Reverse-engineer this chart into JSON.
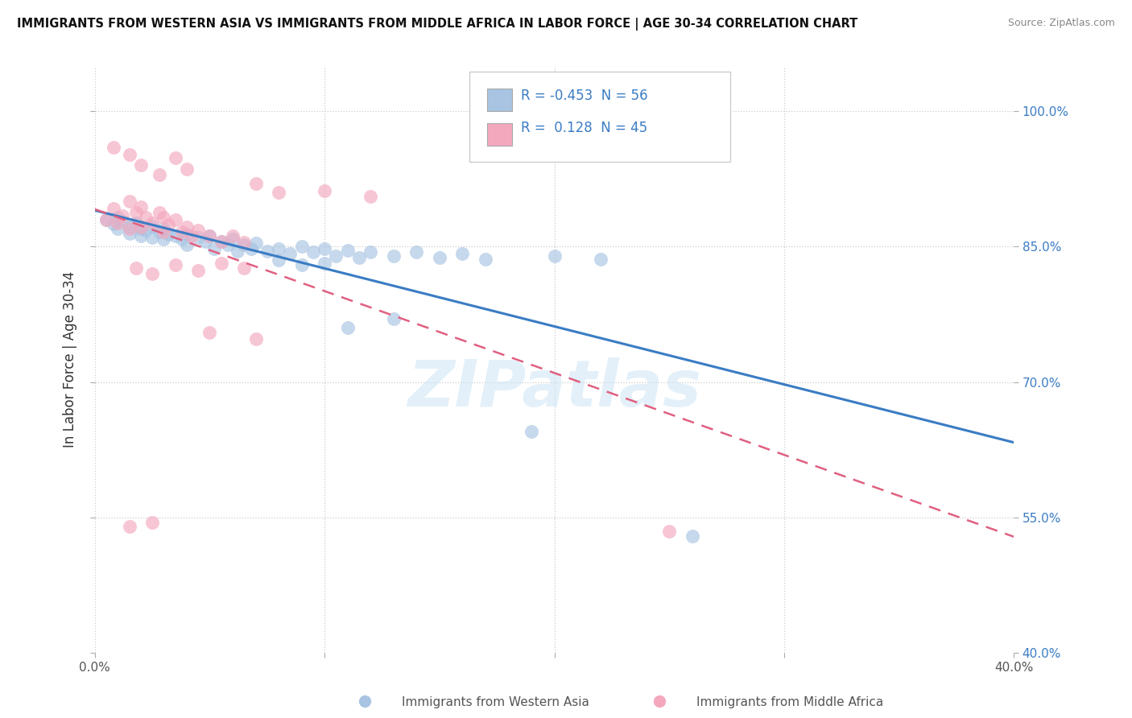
{
  "title": "IMMIGRANTS FROM WESTERN ASIA VS IMMIGRANTS FROM MIDDLE AFRICA IN LABOR FORCE | AGE 30-34 CORRELATION CHART",
  "source": "Source: ZipAtlas.com",
  "ylabel": "In Labor Force | Age 30-34",
  "xlim": [
    0.0,
    0.4
  ],
  "ylim": [
    0.4,
    1.05
  ],
  "yticks": [
    0.4,
    0.55,
    0.7,
    0.85,
    1.0
  ],
  "yticklabels": [
    "40.0%",
    "55.0%",
    "70.0%",
    "85.0%",
    "100.0%"
  ],
  "xticks": [
    0.0,
    0.1,
    0.2,
    0.3,
    0.4
  ],
  "xticklabels": [
    "0.0%",
    "",
    "",
    "",
    "40.0%"
  ],
  "legend_R_blue": "-0.453",
  "legend_N_blue": "56",
  "legend_R_pink": "0.128",
  "legend_N_pink": "45",
  "blue_color": "#a8c4e2",
  "pink_color": "#f4a8be",
  "blue_line_color": "#3a7cc4",
  "pink_line_color": "#e06080",
  "watermark": "ZIPatlas",
  "blue_scatter": [
    [
      0.005,
      0.88
    ],
    [
      0.008,
      0.875
    ],
    [
      0.01,
      0.882
    ],
    [
      0.01,
      0.87
    ],
    [
      0.012,
      0.878
    ],
    [
      0.015,
      0.872
    ],
    [
      0.015,
      0.865
    ],
    [
      0.018,
      0.876
    ],
    [
      0.02,
      0.87
    ],
    [
      0.02,
      0.862
    ],
    [
      0.022,
      0.868
    ],
    [
      0.025,
      0.873
    ],
    [
      0.025,
      0.86
    ],
    [
      0.028,
      0.866
    ],
    [
      0.03,
      0.87
    ],
    [
      0.03,
      0.858
    ],
    [
      0.032,
      0.864
    ],
    [
      0.035,
      0.862
    ],
    [
      0.038,
      0.858
    ],
    [
      0.04,
      0.864
    ],
    [
      0.04,
      0.852
    ],
    [
      0.045,
      0.86
    ],
    [
      0.048,
      0.856
    ],
    [
      0.05,
      0.862
    ],
    [
      0.052,
      0.848
    ],
    [
      0.055,
      0.856
    ],
    [
      0.058,
      0.852
    ],
    [
      0.06,
      0.858
    ],
    [
      0.062,
      0.845
    ],
    [
      0.065,
      0.852
    ],
    [
      0.068,
      0.848
    ],
    [
      0.07,
      0.854
    ],
    [
      0.075,
      0.845
    ],
    [
      0.08,
      0.848
    ],
    [
      0.085,
      0.842
    ],
    [
      0.09,
      0.85
    ],
    [
      0.095,
      0.844
    ],
    [
      0.1,
      0.848
    ],
    [
      0.105,
      0.84
    ],
    [
      0.11,
      0.846
    ],
    [
      0.115,
      0.838
    ],
    [
      0.12,
      0.844
    ],
    [
      0.13,
      0.84
    ],
    [
      0.14,
      0.844
    ],
    [
      0.15,
      0.838
    ],
    [
      0.16,
      0.842
    ],
    [
      0.17,
      0.836
    ],
    [
      0.2,
      0.84
    ],
    [
      0.22,
      0.836
    ],
    [
      0.08,
      0.835
    ],
    [
      0.09,
      0.83
    ],
    [
      0.1,
      0.832
    ],
    [
      0.11,
      0.76
    ],
    [
      0.13,
      0.77
    ],
    [
      0.19,
      0.645
    ],
    [
      0.26,
      0.53
    ]
  ],
  "pink_scatter": [
    [
      0.005,
      0.88
    ],
    [
      0.008,
      0.892
    ],
    [
      0.01,
      0.876
    ],
    [
      0.012,
      0.884
    ],
    [
      0.015,
      0.9
    ],
    [
      0.015,
      0.87
    ],
    [
      0.018,
      0.888
    ],
    [
      0.02,
      0.894
    ],
    [
      0.02,
      0.872
    ],
    [
      0.022,
      0.882
    ],
    [
      0.025,
      0.876
    ],
    [
      0.028,
      0.888
    ],
    [
      0.03,
      0.882
    ],
    [
      0.03,
      0.866
    ],
    [
      0.032,
      0.874
    ],
    [
      0.035,
      0.88
    ],
    [
      0.038,
      0.866
    ],
    [
      0.04,
      0.872
    ],
    [
      0.042,
      0.862
    ],
    [
      0.045,
      0.868
    ],
    [
      0.05,
      0.862
    ],
    [
      0.055,
      0.856
    ],
    [
      0.06,
      0.862
    ],
    [
      0.065,
      0.855
    ],
    [
      0.008,
      0.96
    ],
    [
      0.015,
      0.952
    ],
    [
      0.02,
      0.94
    ],
    [
      0.028,
      0.93
    ],
    [
      0.035,
      0.948
    ],
    [
      0.04,
      0.936
    ],
    [
      0.07,
      0.92
    ],
    [
      0.08,
      0.91
    ],
    [
      0.1,
      0.912
    ],
    [
      0.12,
      0.906
    ],
    [
      0.018,
      0.826
    ],
    [
      0.025,
      0.82
    ],
    [
      0.035,
      0.83
    ],
    [
      0.045,
      0.824
    ],
    [
      0.055,
      0.832
    ],
    [
      0.065,
      0.826
    ],
    [
      0.015,
      0.54
    ],
    [
      0.025,
      0.545
    ],
    [
      0.25,
      0.535
    ],
    [
      0.05,
      0.755
    ],
    [
      0.07,
      0.748
    ]
  ]
}
